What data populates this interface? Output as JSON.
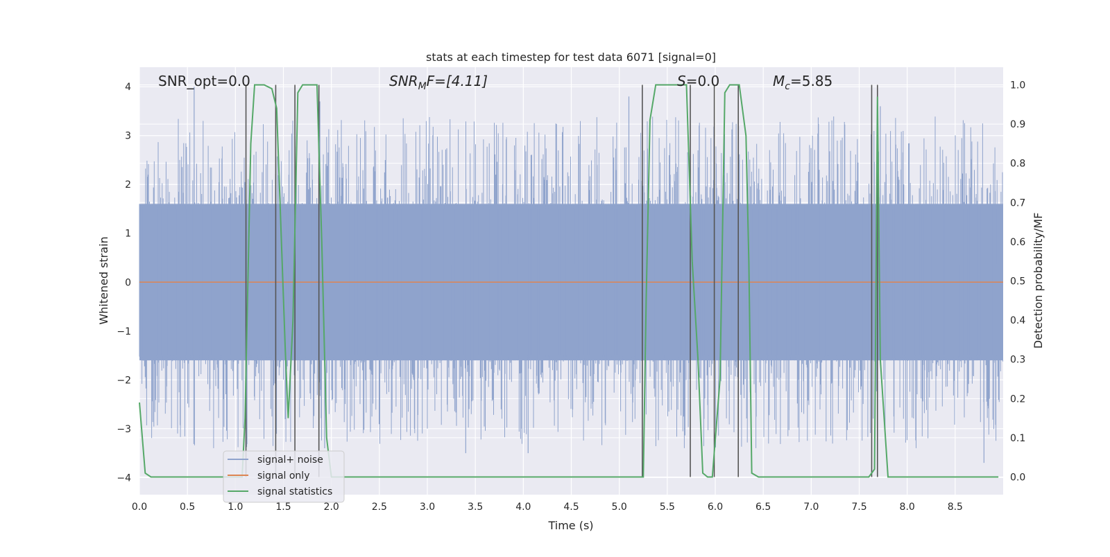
{
  "chart_data": {
    "type": "line",
    "title": "stats at each timestep for test data 6071 [signal=0]",
    "xlabel": "Time (s)",
    "ylabel_left": "Whitened strain",
    "ylabel_right": "Detection probability/MF",
    "xlim": [
      0.0,
      9.0
    ],
    "ylim_left": [
      -4.35,
      4.4
    ],
    "ylim_right": [
      -0.045,
      1.045
    ],
    "x_ticks": [
      "0.0",
      "0.5",
      "1.0",
      "1.5",
      "2.0",
      "2.5",
      "3.0",
      "3.5",
      "4.0",
      "4.5",
      "5.0",
      "5.5",
      "6.0",
      "6.5",
      "7.0",
      "7.5",
      "8.0",
      "8.5"
    ],
    "x_tick_values": [
      0.0,
      0.5,
      1.0,
      1.5,
      2.0,
      2.5,
      3.0,
      3.5,
      4.0,
      4.5,
      5.0,
      5.5,
      6.0,
      6.5,
      7.0,
      7.5,
      8.0,
      8.5
    ],
    "y_ticks_left": [
      "−4",
      "−3",
      "−2",
      "−1",
      "0",
      "1",
      "2",
      "3",
      "4"
    ],
    "y_tick_values_left": [
      -4,
      -3,
      -2,
      -1,
      0,
      1,
      2,
      3,
      4
    ],
    "y_ticks_right": [
      "0.0",
      "0.1",
      "0.2",
      "0.3",
      "0.4",
      "0.5",
      "0.6",
      "0.7",
      "0.8",
      "0.9",
      "1.0"
    ],
    "y_tick_values_right": [
      0.0,
      0.1,
      0.2,
      0.3,
      0.4,
      0.5,
      0.6,
      0.7,
      0.8,
      0.9,
      1.0
    ],
    "grid": true,
    "legend_position": "lower-left",
    "annotations": {
      "snr_opt": "SNR_opt=0.0",
      "snr_mf_main": "SNR",
      "snr_mf_sub": "M",
      "snr_mf_rest": "F=[4.11]",
      "s_main": "S",
      "s_rest": "=0.0",
      "mc_main": "M",
      "mc_sub": "c",
      "mc_rest": "=5.85"
    },
    "series": [
      {
        "name": "signal+ noise",
        "color": "#8fa3cc",
        "kind": "noise",
        "description_values": {
          "typical_range": [
            -1.6,
            1.6
          ],
          "peak_max": 4.0,
          "peak_min": -3.7,
          "seed": 6071
        }
      },
      {
        "name": "signal only",
        "color": "#dd8452",
        "kind": "flat",
        "value": 0.0
      },
      {
        "name": "signal statistics",
        "color": "#55a868",
        "kind": "line",
        "axis": "right",
        "x": [
          0.0,
          0.06,
          0.12,
          0.2,
          1.0,
          1.07,
          1.1,
          1.16,
          1.2,
          1.3,
          1.38,
          1.43,
          1.52,
          1.55,
          1.6,
          1.65,
          1.7,
          1.75,
          1.85,
          1.9,
          1.95,
          2.0,
          5.25,
          5.28,
          5.32,
          5.38,
          5.6,
          5.7,
          5.76,
          5.82,
          5.87,
          5.92,
          5.97,
          6.05,
          6.1,
          6.15,
          6.2,
          6.25,
          6.32,
          6.35,
          6.38,
          6.45,
          7.6,
          7.63,
          7.66,
          7.69,
          7.72,
          7.8,
          8.95
        ],
        "y": [
          0.19,
          0.01,
          0.0,
          0.0,
          0.0,
          0.0,
          0.15,
          0.85,
          1.0,
          1.0,
          0.99,
          0.94,
          0.32,
          0.15,
          0.4,
          0.98,
          1.0,
          1.0,
          1.0,
          0.6,
          0.1,
          0.0,
          0.0,
          0.45,
          0.91,
          1.0,
          1.0,
          1.0,
          0.55,
          0.3,
          0.01,
          0.0,
          0.0,
          0.25,
          0.98,
          1.0,
          1.0,
          1.0,
          0.87,
          0.55,
          0.01,
          0.0,
          0.0,
          0.01,
          0.02,
          0.97,
          0.3,
          0.0,
          0.0
        ]
      }
    ],
    "vertical_lines": {
      "color": "#555555",
      "x": [
        1.11,
        1.42,
        1.62,
        1.87,
        5.24,
        5.74,
        5.99,
        6.24,
        7.63,
        7.69
      ]
    }
  }
}
